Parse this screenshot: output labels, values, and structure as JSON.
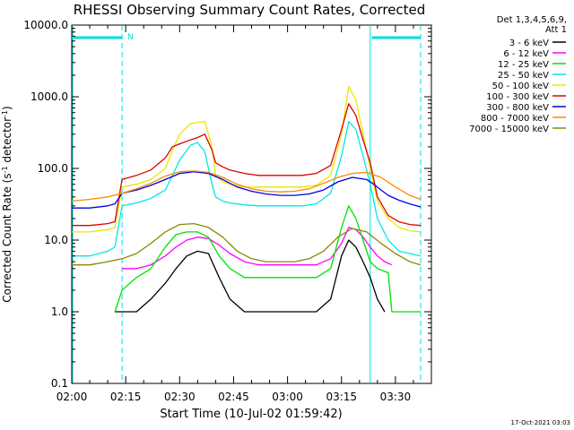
{
  "chart_data": {
    "type": "line",
    "title": "RHESSI Observing Summary Count Rates, Corrected",
    "xlabel": "Start Time (10-Jul-02 01:59:42)",
    "ylabel": "Corrected Count Rate (s⁻¹ detector⁻¹)",
    "ylabel_main": "Corrected Count Rate (s",
    "ylabel_mid": " detector",
    "ylabel_end": ")",
    "ylabel_sup": "-1",
    "yscale": "log",
    "xlim": [
      "02:00",
      "03:40"
    ],
    "ylim": [
      0.1,
      10000
    ],
    "x_tick_labels": [
      "02:00",
      "02:15",
      "02:30",
      "02:45",
      "03:00",
      "03:15",
      "03:30"
    ],
    "y_tick_labels": [
      "0.1",
      "1.0",
      "10.0",
      "100.0",
      "1000.0",
      "10000.0"
    ],
    "legend_title_1": "Det 1,3,4,5,6,9,",
    "legend_title_2": "Att 1",
    "legend_placement": "right",
    "timestamp": "17-Oct-2021 03:03",
    "annotation": "N",
    "night_start": "02:14",
    "night_end": "03:23",
    "saa_start": "03:37",
    "background_color": "#ffffff",
    "series": [
      {
        "name": "3 - 6 keV",
        "color": "#000000",
        "x": [
          "02:12",
          "02:14",
          "02:18",
          "02:22",
          "02:26",
          "02:29",
          "02:32",
          "02:35",
          "02:38",
          "02:41",
          "02:44",
          "02:48",
          "02:52",
          "02:56",
          "03:00",
          "03:04",
          "03:08",
          "03:12",
          "03:15",
          "03:17",
          "03:19",
          "03:21",
          "03:23",
          "03:25",
          "03:27"
        ],
        "y": [
          1.0,
          1.0,
          1.0,
          1.5,
          2.5,
          4.0,
          6.0,
          7.0,
          6.5,
          3.0,
          1.5,
          1.0,
          1.0,
          1.0,
          1.0,
          1.0,
          1.0,
          1.5,
          6.0,
          10.0,
          8.0,
          5.0,
          3.0,
          1.5,
          1.0
        ]
      },
      {
        "name": "6 - 12 keV",
        "color": "#ff00ff",
        "x": [
          "02:14",
          "02:18",
          "02:22",
          "02:26",
          "02:29",
          "02:32",
          "02:35",
          "02:38",
          "02:41",
          "02:44",
          "02:48",
          "02:52",
          "02:56",
          "03:00",
          "03:04",
          "03:08",
          "03:12",
          "03:15",
          "03:17",
          "03:19",
          "03:21",
          "03:23",
          "03:25",
          "03:27",
          "03:29"
        ],
        "y": [
          4.0,
          4.0,
          4.5,
          6.0,
          8.0,
          10.0,
          11.0,
          10.5,
          8.5,
          6.5,
          5.0,
          4.5,
          4.5,
          4.5,
          4.5,
          4.5,
          5.5,
          9.0,
          15.0,
          14.0,
          11.0,
          8.0,
          6.0,
          5.0,
          4.5
        ]
      },
      {
        "name": "12 - 25 keV",
        "color": "#00e000",
        "x": [
          "02:12",
          "02:14",
          "02:18",
          "02:22",
          "02:26",
          "02:29",
          "02:32",
          "02:35",
          "02:38",
          "02:41",
          "02:44",
          "02:48",
          "02:52",
          "02:56",
          "03:00",
          "03:04",
          "03:08",
          "03:12",
          "03:15",
          "03:17",
          "03:19",
          "03:21",
          "03:23",
          "03:25",
          "03:28",
          "03:29",
          "03:31",
          "03:34",
          "03:37"
        ],
        "y": [
          1.0,
          2.0,
          3.0,
          4.0,
          8.0,
          12.0,
          13.0,
          13.0,
          11.0,
          6.0,
          4.0,
          3.0,
          3.0,
          3.0,
          3.0,
          3.0,
          3.0,
          4.0,
          15.0,
          30.0,
          20.0,
          10.0,
          5.0,
          4.0,
          3.5,
          1.0,
          1.0,
          1.0,
          1.0
        ]
      },
      {
        "name": "25 - 50 keV",
        "color": "#00e8e8",
        "x": [
          "02:00",
          "02:05",
          "02:10",
          "02:12",
          "02:14",
          "02:18",
          "02:22",
          "02:26",
          "02:28",
          "02:30",
          "02:33",
          "02:35",
          "02:37",
          "02:39",
          "02:40",
          "02:42",
          "02:44",
          "02:48",
          "02:52",
          "02:56",
          "03:00",
          "03:04",
          "03:08",
          "03:12",
          "03:15",
          "03:17",
          "03:19",
          "03:21",
          "03:23",
          "03:25",
          "03:28",
          "03:31",
          "03:34",
          "03:37"
        ],
        "y": [
          6.0,
          6.0,
          7.0,
          8.0,
          30.0,
          33.0,
          38.0,
          50.0,
          80.0,
          130.0,
          210.0,
          230.0,
          170.0,
          60.0,
          40.0,
          35.0,
          33.0,
          31.0,
          30.0,
          30.0,
          30.0,
          30.0,
          32.0,
          45.0,
          150.0,
          450.0,
          350.0,
          150.0,
          60.0,
          20.0,
          10.0,
          7.0,
          6.5,
          6.0
        ]
      },
      {
        "name": "50 - 100 keV",
        "color": "#e8e800",
        "x": [
          "02:00",
          "02:05",
          "02:10",
          "02:12",
          "02:14",
          "02:18",
          "02:22",
          "02:26",
          "02:28",
          "02:30",
          "02:33",
          "02:35",
          "02:37",
          "02:39",
          "02:40",
          "02:42",
          "02:44",
          "02:48",
          "02:52",
          "02:56",
          "03:00",
          "03:04",
          "03:08",
          "03:12",
          "03:15",
          "03:17",
          "03:19",
          "03:21",
          "03:23",
          "03:25",
          "03:28",
          "03:31",
          "03:34",
          "03:37"
        ],
        "y": [
          13.0,
          13.0,
          14.0,
          15.0,
          55.0,
          60.0,
          70.0,
          100.0,
          180.0,
          300.0,
          420.0,
          440.0,
          450.0,
          200.0,
          80.0,
          65.0,
          60.0,
          55.0,
          55.0,
          55.0,
          55.0,
          55.0,
          58.0,
          80.0,
          300.0,
          1400.0,
          900.0,
          300.0,
          100.0,
          35.0,
          20.0,
          15.0,
          13.5,
          13.0
        ]
      },
      {
        "name": "100 - 300 keV",
        "color": "#e00000",
        "x": [
          "02:00",
          "02:05",
          "02:10",
          "02:12",
          "02:14",
          "02:18",
          "02:22",
          "02:26",
          "02:28",
          "02:30",
          "02:33",
          "02:35",
          "02:37",
          "02:39",
          "02:40",
          "02:42",
          "02:44",
          "02:48",
          "02:52",
          "02:56",
          "03:00",
          "03:04",
          "03:08",
          "03:12",
          "03:15",
          "03:17",
          "03:19",
          "03:21",
          "03:23",
          "03:25",
          "03:28",
          "03:31",
          "03:34",
          "03:37"
        ],
        "y": [
          16.0,
          16.0,
          17.0,
          18.0,
          70.0,
          80.0,
          95.0,
          140.0,
          200.0,
          220.0,
          250.0,
          270.0,
          300.0,
          180.0,
          120.0,
          105.0,
          95.0,
          85.0,
          80.0,
          80.0,
          80.0,
          80.0,
          85.0,
          110.0,
          350.0,
          800.0,
          550.0,
          250.0,
          120.0,
          40.0,
          22.0,
          18.0,
          16.5,
          16.0
        ]
      },
      {
        "name": "300 - 800 keV",
        "color": "#0000e0",
        "x": [
          "02:00",
          "02:05",
          "02:10",
          "02:12",
          "02:14",
          "02:18",
          "02:22",
          "02:26",
          "02:30",
          "02:34",
          "02:38",
          "02:42",
          "02:46",
          "02:50",
          "02:54",
          "02:58",
          "03:02",
          "03:06",
          "03:10",
          "03:14",
          "03:18",
          "03:22",
          "03:24",
          "03:26",
          "03:28",
          "03:31",
          "03:34",
          "03:37"
        ],
        "y": [
          28.0,
          28.0,
          30.0,
          32.0,
          45.0,
          50.0,
          58.0,
          70.0,
          85.0,
          90.0,
          85.0,
          70.0,
          55.0,
          48.0,
          44.0,
          42.0,
          42.0,
          44.0,
          50.0,
          65.0,
          75.0,
          70.0,
          60.0,
          50.0,
          42.0,
          36.0,
          32.0,
          29.0
        ]
      },
      {
        "name": "800 - 7000 keV",
        "color": "#ff8800",
        "x": [
          "02:00",
          "02:05",
          "02:10",
          "02:14",
          "02:18",
          "02:22",
          "02:26",
          "02:30",
          "02:34",
          "02:38",
          "02:42",
          "02:46",
          "02:50",
          "02:54",
          "02:58",
          "03:02",
          "03:06",
          "03:10",
          "03:14",
          "03:18",
          "03:22",
          "03:26",
          "03:30",
          "03:34",
          "03:37"
        ],
        "y": [
          35.0,
          37.0,
          40.0,
          45.0,
          52.0,
          62.0,
          78.0,
          90.0,
          92.0,
          88.0,
          75.0,
          60.0,
          52.0,
          48.0,
          47.0,
          48.0,
          52.0,
          62.0,
          75.0,
          85.0,
          88.0,
          75.0,
          55.0,
          42.0,
          37.0
        ]
      },
      {
        "name": "7000 - 15000 keV",
        "color": "#888800",
        "x": [
          "02:00",
          "02:05",
          "02:10",
          "02:14",
          "02:18",
          "02:22",
          "02:26",
          "02:30",
          "02:34",
          "02:38",
          "02:42",
          "02:46",
          "02:50",
          "02:54",
          "02:58",
          "03:02",
          "03:06",
          "03:10",
          "03:14",
          "03:18",
          "03:22",
          "03:26",
          "03:30",
          "03:34",
          "03:37"
        ],
        "y": [
          4.5,
          4.5,
          5.0,
          5.5,
          6.5,
          9.0,
          13.0,
          16.5,
          17.0,
          15.0,
          11.0,
          7.0,
          5.5,
          5.0,
          5.0,
          5.0,
          5.5,
          7.0,
          11.0,
          14.5,
          13.0,
          9.0,
          6.5,
          5.0,
          4.5
        ]
      }
    ]
  }
}
